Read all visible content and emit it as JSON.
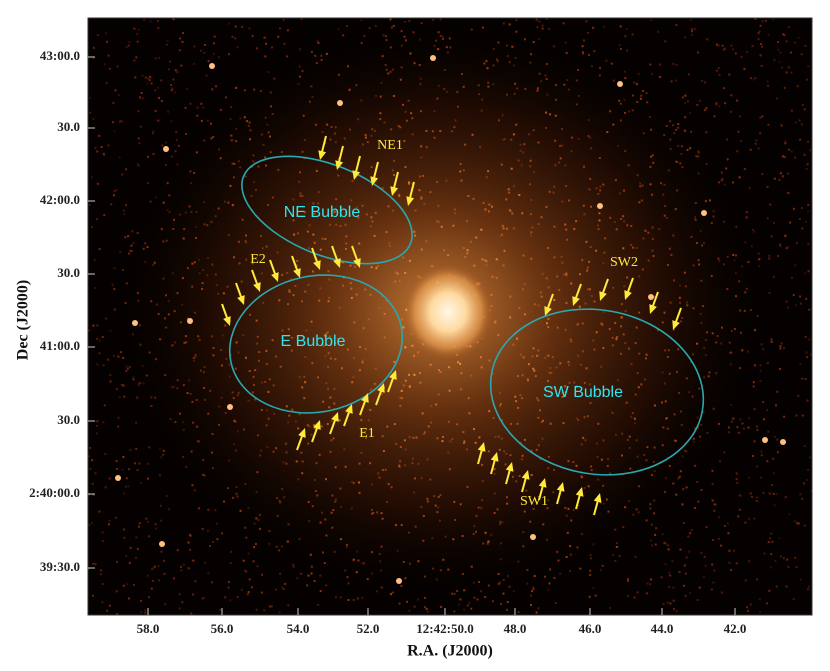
{
  "x_axis": {
    "label": "R.A. (J2000)",
    "ticks": [
      "58.0",
      "56.0",
      "54.0",
      "52.0",
      "12:42:50.0",
      "48.0",
      "46.0",
      "44.0",
      "42.0"
    ]
  },
  "y_axis": {
    "label": "Dec (J2000)",
    "ticks": [
      "43:00.0",
      "30.0",
      "42:00.0",
      "30.0",
      "41:00.0",
      "30.0",
      "2:40:00.0",
      "39:30.0"
    ]
  },
  "regions": [
    "NE Bubble",
    "E Bubble",
    "SW Bubble"
  ],
  "annotations": [
    "NE1",
    "E2",
    "E1",
    "SW2",
    "SW1"
  ]
}
